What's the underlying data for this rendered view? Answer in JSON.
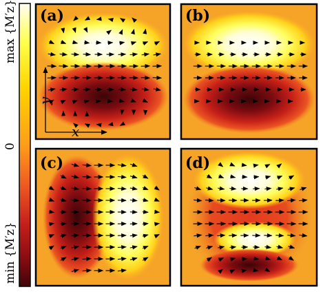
{
  "colorbar": {
    "max_label": "max {M′z}",
    "mid_label": "0",
    "min_label": "min {M′z}",
    "colors": [
      "#fffdf4",
      "#ffff4a",
      "#ffd400",
      "#ff9d18",
      "#ee5b22",
      "#c51f1b",
      "#8a0c11",
      "#3e0508"
    ]
  },
  "axes": {
    "x_label": "x",
    "y_label": "y"
  },
  "panels": [
    {
      "id": "a",
      "label": "(a)"
    },
    {
      "id": "b",
      "label": "(b)"
    },
    {
      "id": "c",
      "label": "(c)"
    },
    {
      "id": "d",
      "label": "(d)"
    }
  ],
  "background_color": "#f5a428"
}
